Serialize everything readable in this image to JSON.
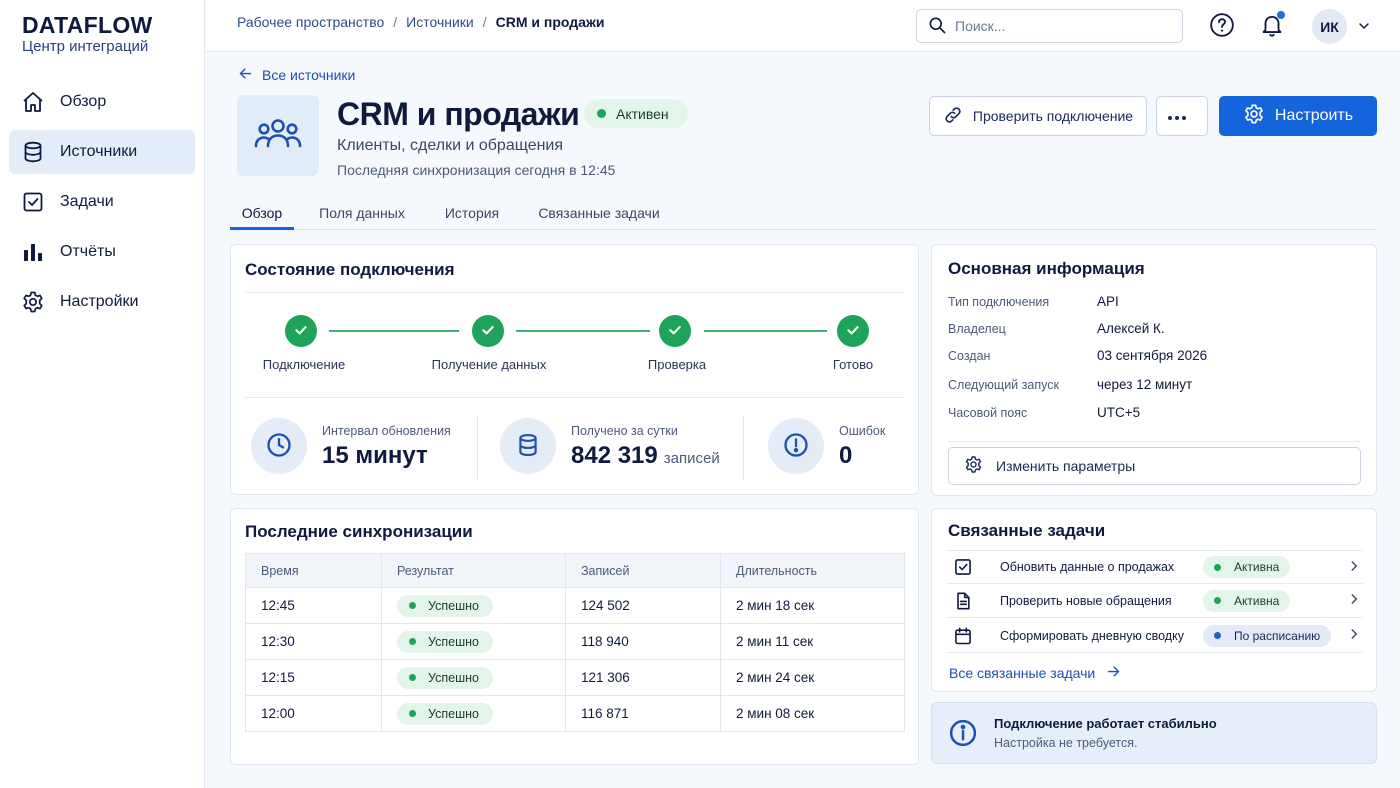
{
  "brand": {
    "name": "DATAFLOW",
    "subtitle": "Центр интеграций"
  },
  "sidebar": {
    "items": [
      {
        "label": "Обзор",
        "icon": "home-icon",
        "active": false
      },
      {
        "label": "Источники",
        "icon": "database-icon",
        "active": true
      },
      {
        "label": "Задачи",
        "icon": "checkbox-icon",
        "active": false
      },
      {
        "label": "Отчёты",
        "icon": "bar-chart-icon",
        "active": false
      },
      {
        "label": "Настройки",
        "icon": "gear-icon",
        "active": false
      }
    ]
  },
  "topbar": {
    "breadcrumbs": [
      "Рабочее пространство",
      "Источники",
      "CRM и продажи"
    ],
    "search_placeholder": "Поиск...",
    "avatar_initials": "ИК",
    "has_notification": true
  },
  "header": {
    "back_label": "Все источники",
    "title": "CRM и продажи",
    "status": "Активен",
    "subtitle": "Клиенты, сделки и обращения",
    "last_sync": "Последняя синхронизация сегодня в 12:45",
    "check_button": "Проверить подключение",
    "more_button": "...",
    "configure_button": "Настроить"
  },
  "tabs": [
    "Обзор",
    "Поля данных",
    "История",
    "Связанные задачи"
  ],
  "connection": {
    "title": "Состояние подключения",
    "steps": [
      "Подключение",
      "Получение данных",
      "Проверка",
      "Готово"
    ],
    "metrics": [
      {
        "label": "Интервал обновления",
        "value": "15 минут",
        "unit": "",
        "icon": "clock-icon"
      },
      {
        "label": "Получено за сутки",
        "value": "842 319",
        "unit": "записей",
        "icon": "database-icon"
      },
      {
        "label": "Ошибок",
        "value": "0",
        "unit": "",
        "icon": "alert-icon"
      }
    ]
  },
  "info": {
    "title": "Основная информация",
    "rows": [
      {
        "key": "Тип подключения",
        "value": "API"
      },
      {
        "key": "Владелец",
        "value": "Алексей К."
      },
      {
        "key": "Создан",
        "value": "03 сентября 2026"
      },
      {
        "key": "Следующий запуск",
        "value": "через 12 минут"
      },
      {
        "key": "Часовой пояс",
        "value": "UTC+5"
      }
    ],
    "edit_button": "Изменить параметры"
  },
  "syncs": {
    "title": "Последние синхронизации",
    "columns": [
      "Время",
      "Результат",
      "Записей",
      "Длительность"
    ],
    "rows": [
      {
        "time": "12:45",
        "result": "Успешно",
        "records": "124 502",
        "duration": "2 мин 18 сек"
      },
      {
        "time": "12:30",
        "result": "Успешно",
        "records": "118 940",
        "duration": "2 мин 11 сек"
      },
      {
        "time": "12:15",
        "result": "Успешно",
        "records": "121 306",
        "duration": "2 мин 24 сек"
      },
      {
        "time": "12:00",
        "result": "Успешно",
        "records": "116 871",
        "duration": "2 мин 08 сек"
      }
    ]
  },
  "tasks": {
    "title": "Связанные задачи",
    "items": [
      {
        "label": "Обновить данные о продажах",
        "status": "Активна",
        "status_color": "green",
        "icon": "checkbox-icon"
      },
      {
        "label": "Проверить новые обращения",
        "status": "Активна",
        "status_color": "green",
        "icon": "document-icon"
      },
      {
        "label": "Сформировать дневную сводку",
        "status": "По расписанию",
        "status_color": "blue",
        "icon": "calendar-icon"
      }
    ],
    "all_link": "Все связанные задачи"
  },
  "notice": {
    "title": "Подключение работает стабильно",
    "subtitle": "Настройка не требуется."
  },
  "colors": {
    "primary": "#1464dc",
    "success": "#1ea45a",
    "navy": "#0f1a3d"
  }
}
